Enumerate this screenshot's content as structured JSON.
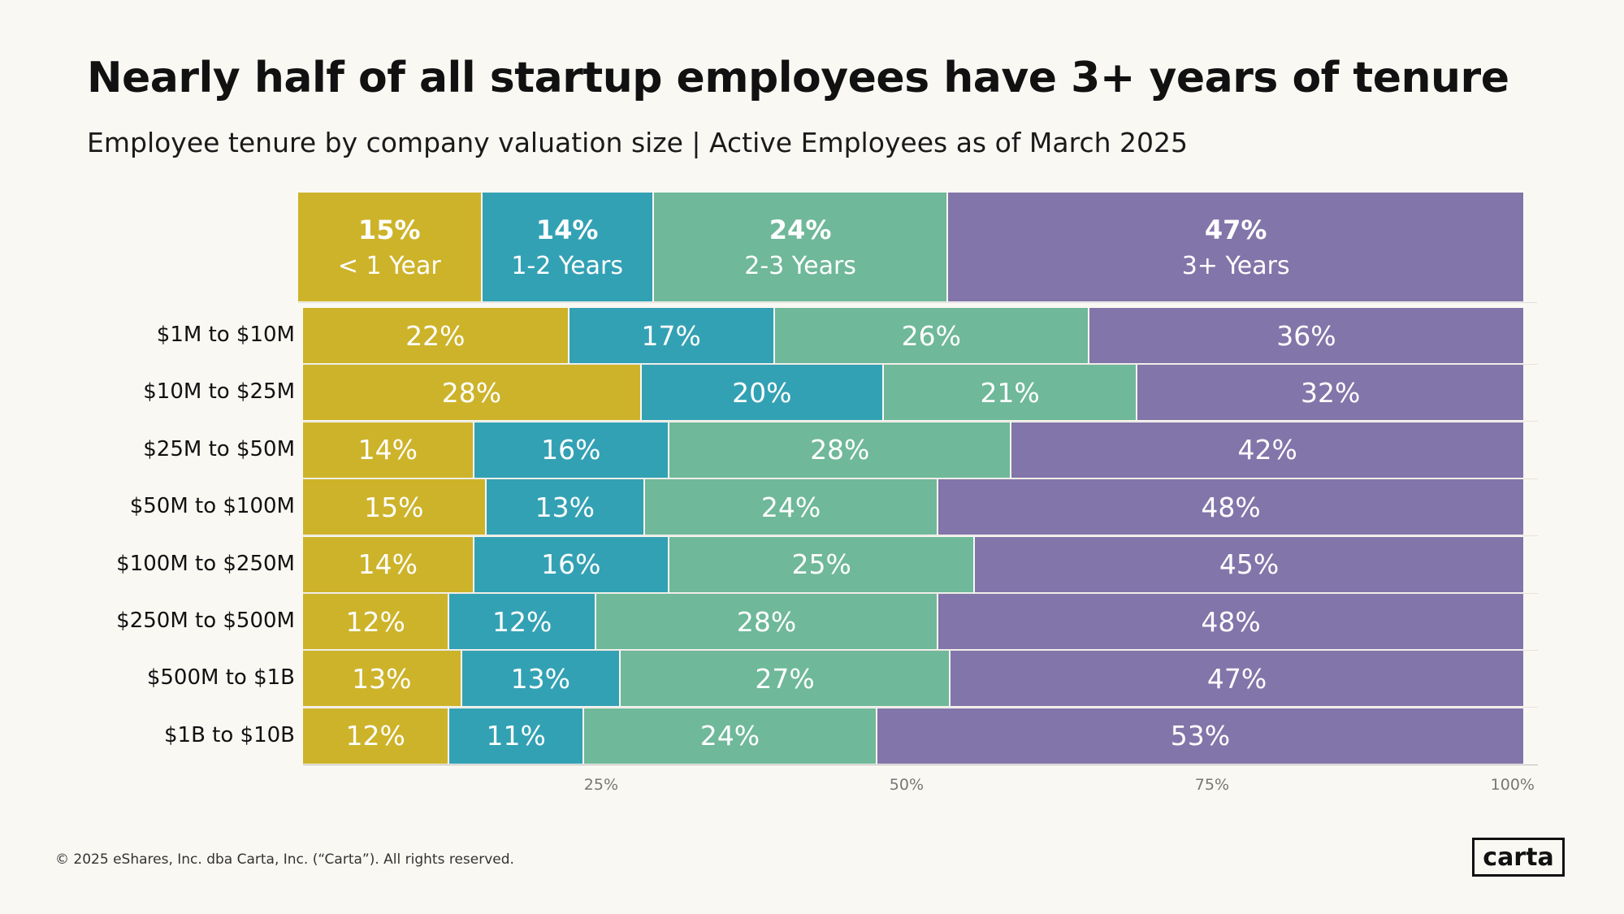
{
  "header": {
    "title": "Nearly half of all startup employees have 3+ years of tenure",
    "subtitle": "Employee tenure by company valuation size | Active Employees as of March 2025"
  },
  "chart_data": {
    "type": "bar",
    "orientation": "horizontal-stacked-100",
    "colors": [
      "#CDB32A",
      "#33A1B4",
      "#6FB89A",
      "#8275A9"
    ],
    "overall": [
      {
        "value": "15%",
        "label": "< 1 Year",
        "num": 15
      },
      {
        "value": "14%",
        "label": "1-2 Years",
        "num": 14
      },
      {
        "value": "24%",
        "label": "2-3 Years",
        "num": 24
      },
      {
        "value": "47%",
        "label": "3+ Years",
        "num": 47
      }
    ],
    "series_names": [
      "< 1 Year",
      "1-2 Years",
      "2-3 Years",
      "3+ Years"
    ],
    "categories": [
      "$1M to $10M",
      "$10M to $25M",
      "$25M to $50M",
      "$50M to $100M",
      "$100M to $250M",
      "$250M to $500M",
      "$500M to $1B",
      "$1B to $10B"
    ],
    "values": [
      [
        22,
        17,
        26,
        36
      ],
      [
        28,
        20,
        21,
        32
      ],
      [
        14,
        16,
        28,
        42
      ],
      [
        15,
        13,
        24,
        48
      ],
      [
        14,
        16,
        25,
        45
      ],
      [
        12,
        12,
        28,
        48
      ],
      [
        13,
        13,
        27,
        47
      ],
      [
        12,
        11,
        24,
        53
      ]
    ],
    "xticks": [
      "25%",
      "50%",
      "75%",
      "100%"
    ],
    "xtick_values": [
      25,
      50,
      75,
      100
    ],
    "xlim": [
      0,
      100
    ]
  },
  "footer": {
    "copyright": "© 2025 eShares, Inc. dba Carta, Inc. (“Carta”). All rights reserved.",
    "logo": "carta"
  }
}
